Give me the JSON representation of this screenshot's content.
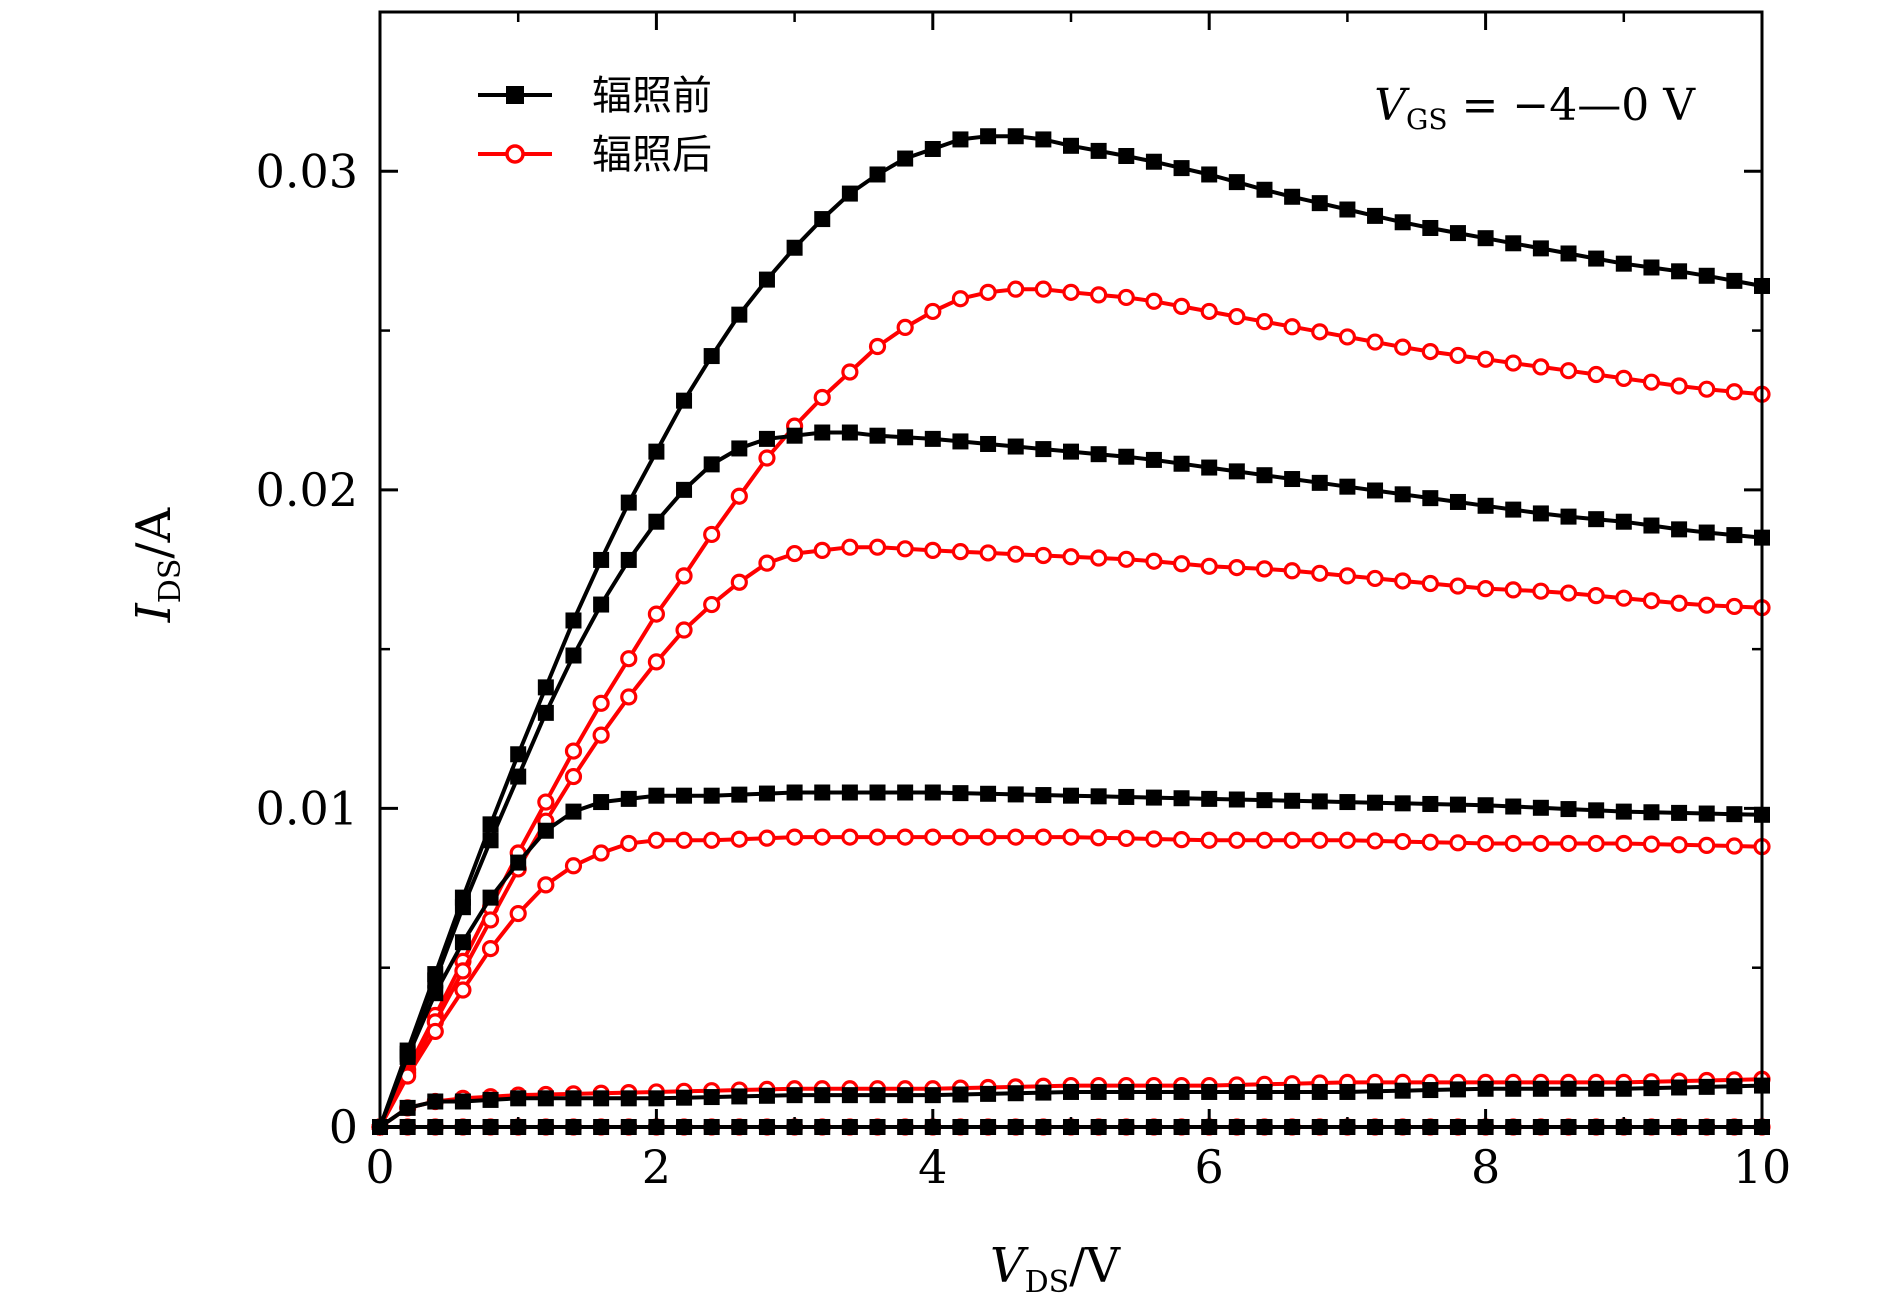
{
  "chart_data": {
    "type": "line",
    "title": "",
    "xlabel": {
      "var": "V",
      "sub": "DS",
      "unit": "/V"
    },
    "ylabel": {
      "var": "I",
      "sub": "DS",
      "unit": "/A"
    },
    "xlim": [
      0,
      10
    ],
    "ylim": [
      0,
      0.035
    ],
    "xticks": [
      0,
      2,
      4,
      6,
      8,
      10
    ],
    "xtick_labels": [
      "0",
      "2",
      "4",
      "6",
      "8",
      "10"
    ],
    "yticks": [
      0,
      0.01,
      0.02,
      0.03
    ],
    "ytick_labels": [
      "0",
      "0.01",
      "0.02",
      "0.03"
    ],
    "annotation": {
      "var": "V",
      "sub": "GS",
      "text": " = −4—0 V"
    },
    "legend_position": "top-left",
    "legend": [
      {
        "label": "辐照前",
        "color": "#000000",
        "marker": "square-filled"
      },
      {
        "label": "辐照后",
        "color": "#ff0000",
        "marker": "circle-open"
      }
    ],
    "x_step": 0.2,
    "x_points": 51,
    "series": [
      {
        "name": "辐照前",
        "curve": "VGS=0 V",
        "color": "#000000",
        "marker": "square-filled",
        "points": [
          [
            0,
            0
          ],
          [
            0.2,
            0.0024
          ],
          [
            0.4,
            0.0048
          ],
          [
            0.6,
            0.0072
          ],
          [
            0.8,
            0.0095
          ],
          [
            1,
            0.0117
          ],
          [
            1.2,
            0.0138
          ],
          [
            1.4,
            0.0159
          ],
          [
            1.6,
            0.0178
          ],
          [
            1.8,
            0.0196
          ],
          [
            2,
            0.0212
          ],
          [
            2.2,
            0.0228
          ],
          [
            2.4,
            0.0242
          ],
          [
            2.6,
            0.0255
          ],
          [
            2.8,
            0.0266
          ],
          [
            3,
            0.0276
          ],
          [
            3.2,
            0.0285
          ],
          [
            3.4,
            0.0293
          ],
          [
            3.6,
            0.0299
          ],
          [
            3.8,
            0.0304
          ],
          [
            4,
            0.0307
          ],
          [
            4.2,
            0.031
          ],
          [
            4.4,
            0.0311
          ],
          [
            4.6,
            0.0311
          ],
          [
            4.8,
            0.031
          ],
          [
            5,
            0.0308
          ],
          [
            5.5,
            0.0304
          ],
          [
            6,
            0.0299
          ],
          [
            6.5,
            0.0293
          ],
          [
            7,
            0.0288
          ],
          [
            7.5,
            0.0283
          ],
          [
            8,
            0.0279
          ],
          [
            8.5,
            0.0275
          ],
          [
            9,
            0.0271
          ],
          [
            9.5,
            0.0268
          ],
          [
            10,
            0.0264
          ]
        ]
      },
      {
        "name": "辐照前",
        "curve": "VGS=-1 V",
        "color": "#000000",
        "marker": "square-filled",
        "points": [
          [
            0,
            0
          ],
          [
            0.2,
            0.0023
          ],
          [
            0.4,
            0.0046
          ],
          [
            0.6,
            0.0069
          ],
          [
            0.8,
            0.009
          ],
          [
            1,
            0.011
          ],
          [
            1.2,
            0.013
          ],
          [
            1.4,
            0.0148
          ],
          [
            1.6,
            0.0164
          ],
          [
            1.8,
            0.0178
          ],
          [
            2,
            0.019
          ],
          [
            2.2,
            0.02
          ],
          [
            2.4,
            0.0208
          ],
          [
            2.6,
            0.0213
          ],
          [
            2.8,
            0.0216
          ],
          [
            3,
            0.0217
          ],
          [
            3.2,
            0.0218
          ],
          [
            3.4,
            0.0218
          ],
          [
            3.6,
            0.0217
          ],
          [
            4,
            0.0216
          ],
          [
            4.5,
            0.0214
          ],
          [
            5,
            0.0212
          ],
          [
            5.5,
            0.021
          ],
          [
            6,
            0.0207
          ],
          [
            6.5,
            0.0204
          ],
          [
            7,
            0.0201
          ],
          [
            7.5,
            0.0198
          ],
          [
            8,
            0.0195
          ],
          [
            8.5,
            0.0192
          ],
          [
            9,
            0.019
          ],
          [
            9.5,
            0.0187
          ],
          [
            10,
            0.0185
          ]
        ]
      },
      {
        "name": "辐照前",
        "curve": "VGS=-2 V",
        "color": "#000000",
        "marker": "square-filled",
        "points": [
          [
            0,
            0
          ],
          [
            0.2,
            0.0022
          ],
          [
            0.4,
            0.0042
          ],
          [
            0.6,
            0.0058
          ],
          [
            0.8,
            0.0072
          ],
          [
            1,
            0.0083
          ],
          [
            1.2,
            0.0093
          ],
          [
            1.4,
            0.0099
          ],
          [
            1.6,
            0.0102
          ],
          [
            1.8,
            0.0103
          ],
          [
            2,
            0.0104
          ],
          [
            2.4,
            0.0104
          ],
          [
            3,
            0.0105
          ],
          [
            4,
            0.0105
          ],
          [
            5,
            0.0104
          ],
          [
            6,
            0.0103
          ],
          [
            7,
            0.0102
          ],
          [
            8,
            0.0101
          ],
          [
            9,
            0.0099
          ],
          [
            10,
            0.0098
          ]
        ]
      },
      {
        "name": "辐照前",
        "curve": "VGS=-3 V",
        "color": "#000000",
        "marker": "square-filled",
        "points": [
          [
            0,
            0
          ],
          [
            0.2,
            0.0006
          ],
          [
            0.4,
            0.0008
          ],
          [
            0.6,
            0.0008
          ],
          [
            1,
            0.0009
          ],
          [
            2,
            0.0009
          ],
          [
            3,
            0.001
          ],
          [
            4,
            0.001
          ],
          [
            5,
            0.0011
          ],
          [
            6,
            0.0011
          ],
          [
            7,
            0.0011
          ],
          [
            8,
            0.0012
          ],
          [
            9,
            0.0012
          ],
          [
            10,
            0.0013
          ]
        ]
      },
      {
        "name": "辐照前",
        "curve": "VGS=-4 V",
        "color": "#000000",
        "marker": "square-filled",
        "points": [
          [
            0,
            0
          ],
          [
            10,
            0
          ]
        ]
      },
      {
        "name": "辐照后",
        "curve": "VGS=0 V",
        "color": "#ff0000",
        "marker": "circle-open",
        "points": [
          [
            0,
            0
          ],
          [
            0.2,
            0.0018
          ],
          [
            0.4,
            0.0035
          ],
          [
            0.6,
            0.0052
          ],
          [
            0.8,
            0.0069
          ],
          [
            1,
            0.0086
          ],
          [
            1.2,
            0.0102
          ],
          [
            1.4,
            0.0118
          ],
          [
            1.6,
            0.0133
          ],
          [
            1.8,
            0.0147
          ],
          [
            2,
            0.0161
          ],
          [
            2.2,
            0.0173
          ],
          [
            2.4,
            0.0186
          ],
          [
            2.6,
            0.0198
          ],
          [
            2.8,
            0.021
          ],
          [
            3,
            0.022
          ],
          [
            3.2,
            0.0229
          ],
          [
            3.4,
            0.0237
          ],
          [
            3.6,
            0.0245
          ],
          [
            3.8,
            0.0251
          ],
          [
            4,
            0.0256
          ],
          [
            4.2,
            0.026
          ],
          [
            4.4,
            0.0262
          ],
          [
            4.6,
            0.0263
          ],
          [
            4.8,
            0.0263
          ],
          [
            5,
            0.0262
          ],
          [
            5.5,
            0.026
          ],
          [
            6,
            0.0256
          ],
          [
            6.5,
            0.0252
          ],
          [
            7,
            0.0248
          ],
          [
            7.5,
            0.0244
          ],
          [
            8,
            0.0241
          ],
          [
            8.5,
            0.0238
          ],
          [
            9,
            0.0235
          ],
          [
            9.5,
            0.0232
          ],
          [
            10,
            0.023
          ]
        ]
      },
      {
        "name": "辐照后",
        "curve": "VGS=-1 V",
        "color": "#ff0000",
        "marker": "circle-open",
        "points": [
          [
            0,
            0
          ],
          [
            0.2,
            0.0017
          ],
          [
            0.4,
            0.0033
          ],
          [
            0.6,
            0.0049
          ],
          [
            0.8,
            0.0065
          ],
          [
            1,
            0.0081
          ],
          [
            1.2,
            0.0096
          ],
          [
            1.4,
            0.011
          ],
          [
            1.6,
            0.0123
          ],
          [
            1.8,
            0.0135
          ],
          [
            2,
            0.0146
          ],
          [
            2.2,
            0.0156
          ],
          [
            2.4,
            0.0164
          ],
          [
            2.6,
            0.0171
          ],
          [
            2.8,
            0.0177
          ],
          [
            3,
            0.018
          ],
          [
            3.2,
            0.0181
          ],
          [
            3.4,
            0.0182
          ],
          [
            3.6,
            0.0182
          ],
          [
            4,
            0.0181
          ],
          [
            4.5,
            0.018
          ],
          [
            5,
            0.0179
          ],
          [
            5.5,
            0.0178
          ],
          [
            6,
            0.0176
          ],
          [
            6.5,
            0.0175
          ],
          [
            7,
            0.0173
          ],
          [
            7.5,
            0.0171
          ],
          [
            8,
            0.0169
          ],
          [
            8.5,
            0.0168
          ],
          [
            9,
            0.0166
          ],
          [
            9.5,
            0.0164
          ],
          [
            10,
            0.0163
          ]
        ]
      },
      {
        "name": "辐照后",
        "curve": "VGS=-2 V",
        "color": "#ff0000",
        "marker": "circle-open",
        "points": [
          [
            0,
            0
          ],
          [
            0.2,
            0.0016
          ],
          [
            0.4,
            0.003
          ],
          [
            0.6,
            0.0043
          ],
          [
            0.8,
            0.0056
          ],
          [
            1,
            0.0067
          ],
          [
            1.2,
            0.0076
          ],
          [
            1.4,
            0.0082
          ],
          [
            1.6,
            0.0086
          ],
          [
            1.8,
            0.0089
          ],
          [
            2,
            0.009
          ],
          [
            2.4,
            0.009
          ],
          [
            3,
            0.0091
          ],
          [
            4,
            0.0091
          ],
          [
            5,
            0.0091
          ],
          [
            6,
            0.009
          ],
          [
            7,
            0.009
          ],
          [
            8,
            0.0089
          ],
          [
            9,
            0.0089
          ],
          [
            10,
            0.0088
          ]
        ]
      },
      {
        "name": "辐照后",
        "curve": "VGS=-3 V",
        "color": "#ff0000",
        "marker": "circle-open",
        "points": [
          [
            0,
            0
          ],
          [
            0.2,
            0.0006
          ],
          [
            0.4,
            0.0008
          ],
          [
            0.6,
            0.0009
          ],
          [
            1,
            0.001
          ],
          [
            2,
            0.0011
          ],
          [
            3,
            0.0012
          ],
          [
            4,
            0.0012
          ],
          [
            5,
            0.0013
          ],
          [
            6,
            0.0013
          ],
          [
            7,
            0.0014
          ],
          [
            8,
            0.0014
          ],
          [
            9,
            0.0014
          ],
          [
            10,
            0.0015
          ]
        ]
      },
      {
        "name": "辐照后",
        "curve": "VGS=-4 V",
        "color": "#ff0000",
        "marker": "circle-open",
        "points": [
          [
            0,
            0
          ],
          [
            10,
            0
          ]
        ]
      }
    ]
  }
}
